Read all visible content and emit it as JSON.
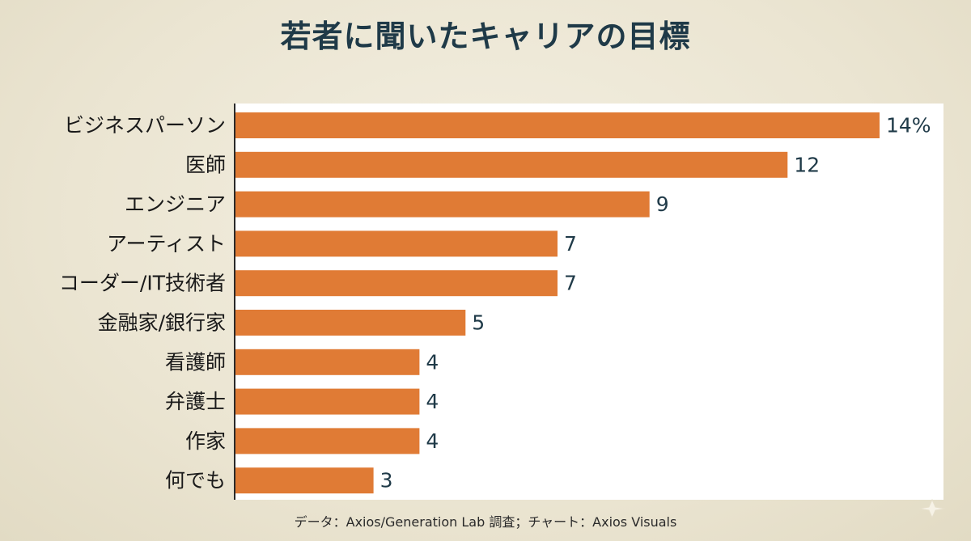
{
  "title": "若者に聞いたキャリアの目標",
  "source": "データ：Axios/Generation Lab 調査；チャート：Axios Visuals",
  "colors": {
    "bar": "#e07b35",
    "title": "#1f3a48",
    "value_text": "#1f3a48",
    "background": "#ede7d5",
    "plot_background": "#ffffff"
  },
  "chart_data": {
    "type": "bar",
    "orientation": "horizontal",
    "title": "若者に聞いたキャリアの目標",
    "categories": [
      "ビジネスパーソン",
      "医師",
      "エンジニア",
      "アーティスト",
      "コーダー/IT技術者",
      "金融家/銀行家",
      "看護師",
      "弁護士",
      "作家",
      "何でも"
    ],
    "values": [
      14,
      12,
      9,
      7,
      7,
      5,
      4,
      4,
      4,
      3
    ],
    "value_labels": [
      "14%",
      "12",
      "9",
      "7",
      "7",
      "5",
      "4",
      "4",
      "4",
      "3"
    ],
    "unit": "%",
    "xlabel": "",
    "ylabel": "",
    "xlim": [
      0,
      14
    ],
    "grid": false,
    "legend": "none"
  }
}
